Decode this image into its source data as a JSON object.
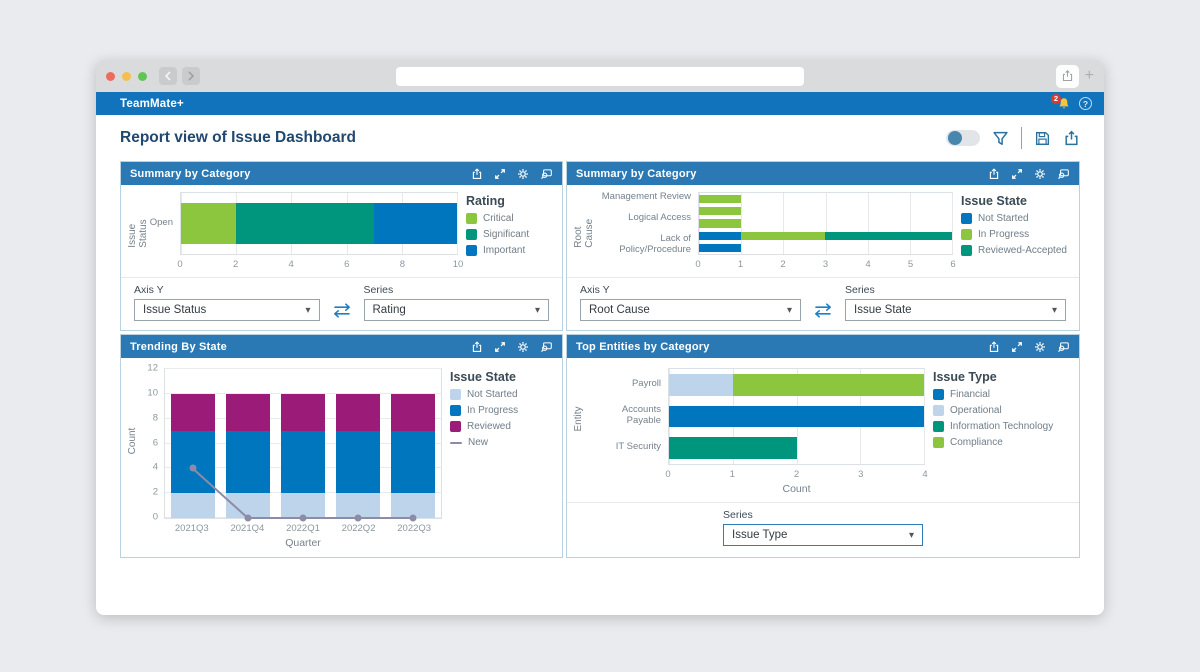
{
  "browser": {
    "address_value": ""
  },
  "app_bar": {
    "title": "TeamMate+",
    "notification_count": "2",
    "icons": [
      "notification-bell-icon",
      "help-icon"
    ]
  },
  "page": {
    "title": "Report view of Issue Dashboard",
    "toolbar_icons": [
      "preview-toggle",
      "filter-icon",
      "save-icon",
      "export-icon"
    ]
  },
  "panels": [
    {
      "title": "Summary by Category",
      "header_icons": [
        "export-icon",
        "expand-icon",
        "settings-icon",
        "search-data-icon"
      ],
      "controls": {
        "axis_y_label": "Axis Y",
        "axis_y_value": "Issue Status",
        "series_label": "Series",
        "series_value": "Rating"
      }
    },
    {
      "title": "Summary by Category",
      "header_icons": [
        "export-icon",
        "expand-icon",
        "settings-icon",
        "search-data-icon"
      ],
      "controls": {
        "axis_y_label": "Axis Y",
        "axis_y_value": "Root Cause",
        "series_label": "Series",
        "series_value": "Issue State"
      }
    },
    {
      "title": "Trending By State",
      "header_icons": [
        "export-icon",
        "expand-icon",
        "settings-icon",
        "search-data-icon"
      ]
    },
    {
      "title": "Top Entities by Category",
      "header_icons": [
        "export-icon",
        "expand-icon",
        "settings-icon",
        "search-data-icon"
      ],
      "controls": {
        "series_label": "Series",
        "series_value": "Issue Type"
      }
    }
  ],
  "chart_data": [
    {
      "type": "bar",
      "orientation": "horizontal",
      "title": "Summary by Category",
      "categories": [
        "Open"
      ],
      "series": [
        {
          "name": "Critical",
          "color": "#8CC63F",
          "values": [
            2
          ]
        },
        {
          "name": "Significant",
          "color": "#00957D",
          "values": [
            5
          ]
        },
        {
          "name": "Important",
          "color": "#0076BE",
          "values": [
            3
          ]
        }
      ],
      "xlim": [
        0,
        10
      ],
      "xticks": [
        0,
        2,
        4,
        6,
        8,
        10
      ],
      "ylabel": "Issue Status",
      "legend_title": "Rating",
      "legend_position": "right",
      "grid": true
    },
    {
      "type": "bar",
      "orientation": "horizontal",
      "title": "Summary by Category",
      "categories": [
        "Management Review",
        "",
        "Logical Access",
        "",
        "Lack of Policy/Procedure"
      ],
      "series": [
        {
          "name": "Not Started",
          "color": "#0076BE",
          "values": [
            0,
            0,
            0,
            1,
            1
          ]
        },
        {
          "name": "In Progress",
          "color": "#8CC63F",
          "values": [
            1,
            1,
            1,
            2,
            0
          ]
        },
        {
          "name": "Reviewed-Accepted",
          "color": "#00957D",
          "values": [
            0,
            0,
            0,
            3,
            0
          ]
        }
      ],
      "xlim": [
        0,
        6
      ],
      "xticks": [
        0,
        1,
        2,
        3,
        4,
        5,
        6
      ],
      "ylabel": "Root Cause",
      "legend_title": "Issue State",
      "legend_position": "right",
      "grid": true
    },
    {
      "type": "bar-line",
      "orientation": "vertical",
      "title": "Trending By State",
      "categories": [
        "2021Q3",
        "2021Q4",
        "2022Q1",
        "2022Q2",
        "2022Q3"
      ],
      "series": [
        {
          "name": "Not Started",
          "color": "#BDD4EB",
          "values": [
            2,
            2,
            2,
            2,
            2
          ]
        },
        {
          "name": "In Progress",
          "color": "#0076BE",
          "values": [
            5,
            5,
            5,
            5,
            5
          ]
        },
        {
          "name": "Reviewed",
          "color": "#9A1B78",
          "values": [
            3,
            3,
            3,
            3,
            3
          ]
        }
      ],
      "line_series": {
        "name": "New",
        "color": "#8D8BA7",
        "values": [
          4,
          0,
          0,
          0,
          0
        ]
      },
      "ylim": [
        0,
        12
      ],
      "yticks": [
        0,
        2,
        4,
        6,
        8,
        10,
        12
      ],
      "ylabel": "Count",
      "xlabel": "Quarter",
      "legend_title": "Issue State",
      "legend_position": "right",
      "grid": true
    },
    {
      "type": "bar",
      "orientation": "horizontal",
      "title": "Top Entities by Category",
      "categories": [
        "Payroll",
        "Accounts Payable",
        "IT Security"
      ],
      "series": [
        {
          "name": "Financial",
          "color": "#0076BE",
          "values": [
            0,
            4,
            0
          ]
        },
        {
          "name": "Operational",
          "color": "#BDD4EB",
          "values": [
            1,
            0,
            0
          ]
        },
        {
          "name": "Information Technology",
          "color": "#00957D",
          "values": [
            0,
            0,
            2
          ]
        },
        {
          "name": "Compliance",
          "color": "#8CC63F",
          "values": [
            3,
            0,
            0
          ]
        }
      ],
      "xlim": [
        0,
        4
      ],
      "xticks": [
        0,
        1,
        2,
        3,
        4
      ],
      "xlabel": "Count",
      "ylabel": "Entity",
      "legend_title": "Issue Type",
      "legend_position": "right",
      "grid": true
    }
  ]
}
